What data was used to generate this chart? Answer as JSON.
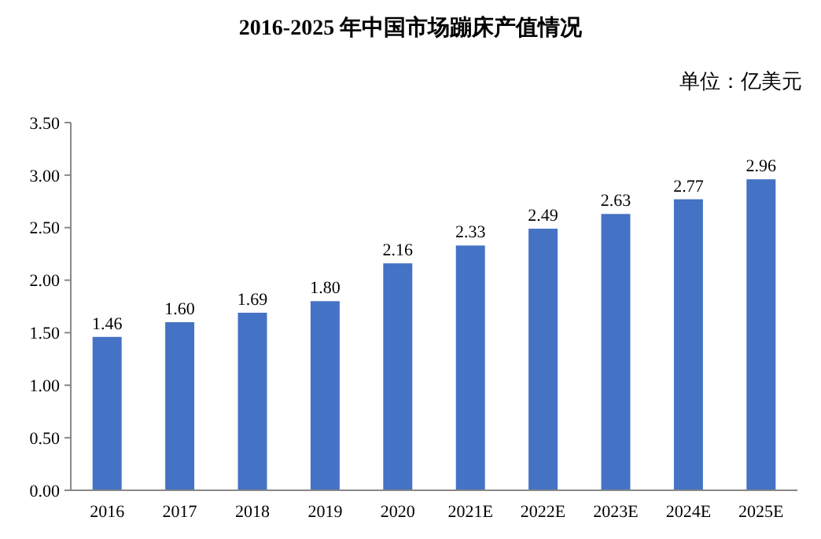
{
  "chart_data": {
    "type": "bar",
    "title": "2016-2025 年中国市场蹦床产值情况",
    "annotations": [
      "单位：亿美元"
    ],
    "categories": [
      "2016",
      "2017",
      "2018",
      "2019",
      "2020",
      "2021E",
      "2022E",
      "2023E",
      "2024E",
      "2025E"
    ],
    "values": [
      1.46,
      1.6,
      1.69,
      1.8,
      2.16,
      2.33,
      2.49,
      2.63,
      2.77,
      2.96
    ],
    "color": "#4472c4",
    "value_labels": [
      "1.46",
      "1.60",
      "1.69",
      "1.80",
      "2.16",
      "2.33",
      "2.49",
      "2.63",
      "2.77",
      "2.96"
    ],
    "ylim": [
      0,
      3.5
    ],
    "yticks": [
      {
        "value": 0,
        "label": "0.00"
      },
      {
        "value": 0.5,
        "label": "0.50"
      },
      {
        "value": 1,
        "label": "1.00"
      },
      {
        "value": 1.5,
        "label": "1.50"
      },
      {
        "value": 2,
        "label": "2.00"
      },
      {
        "value": 2.5,
        "label": "2.50"
      },
      {
        "value": 3,
        "label": "3.00"
      },
      {
        "value": 3.5,
        "label": "3.50"
      }
    ],
    "grid": false
  }
}
